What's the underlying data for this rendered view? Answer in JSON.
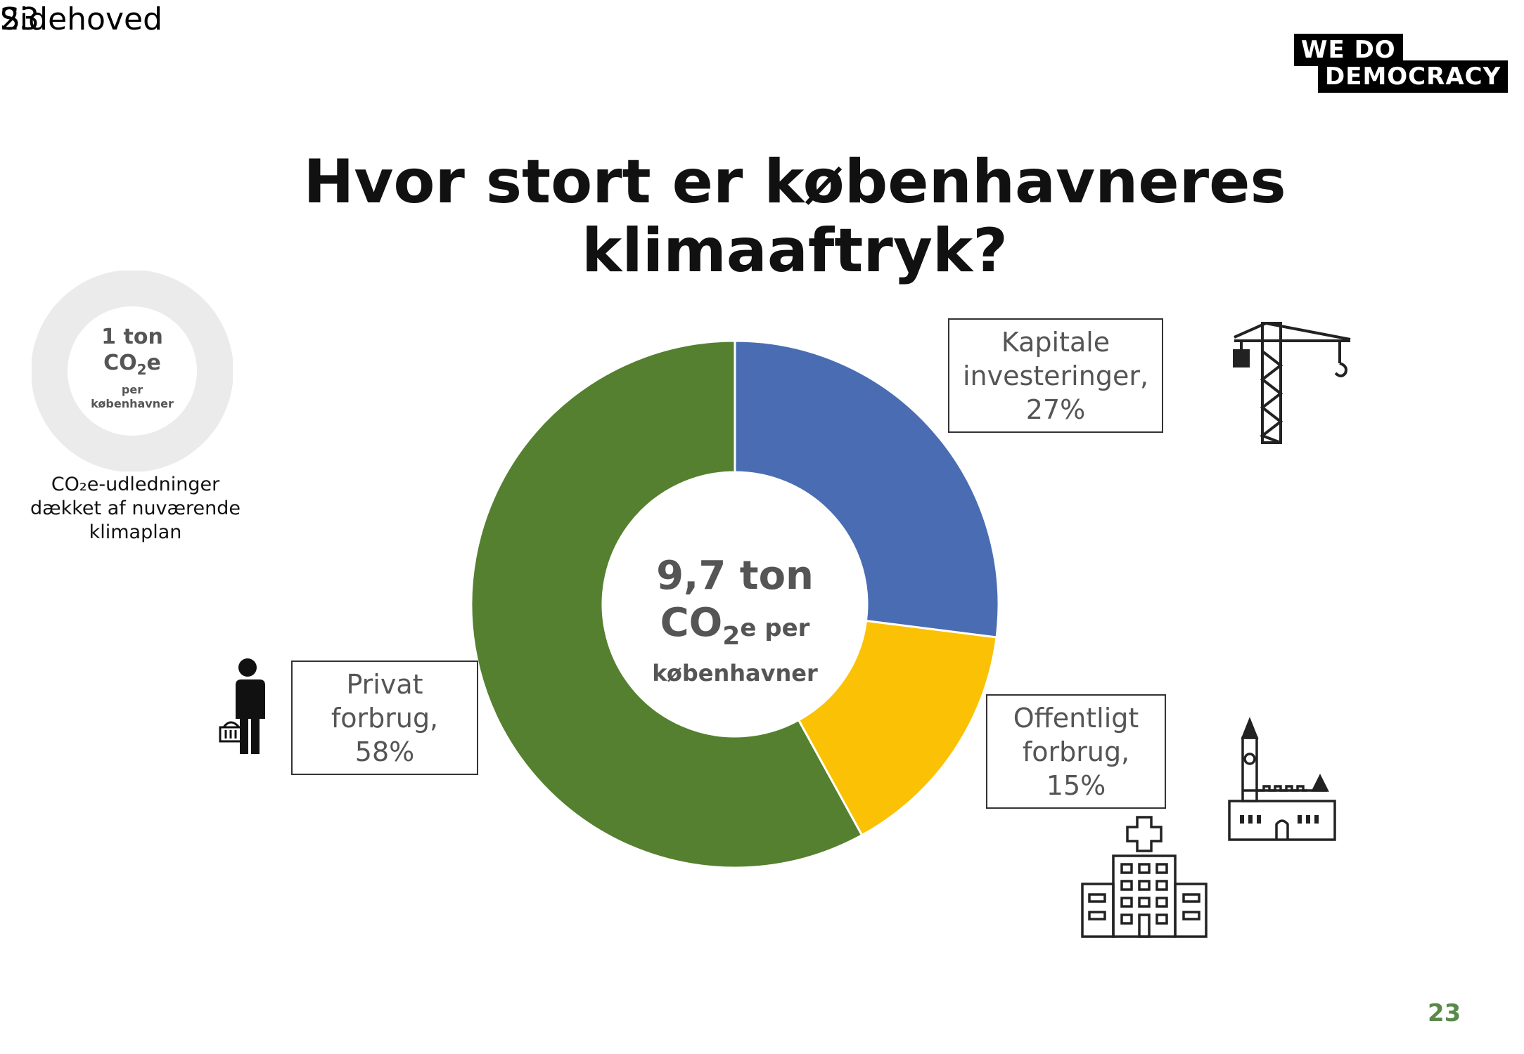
{
  "header": {
    "overlap_a": "Sidehoved",
    "overlap_b": "23"
  },
  "logo": {
    "line1": "WE  DO",
    "line2": "DEMOCRACY"
  },
  "title": {
    "line1": "Hvor stort er københavneres",
    "line2": "klimaaftryk?"
  },
  "small_ring": {
    "line1": "1 ton",
    "co2_main": "CO",
    "co2_sub": "2",
    "co2_suffix": "e",
    "line3": "per",
    "line4": "københavner",
    "color": "#ebebeb"
  },
  "legend": {
    "line1": "CO₂e-udledninger",
    "line2": "dækket af nuværende",
    "line3": "klimaplan"
  },
  "center": {
    "value": "9,7 ton",
    "co2_main": "CO",
    "co2_sub": "2",
    "co2_suffix": "e per",
    "line3": "københavner"
  },
  "labels": {
    "kapitale": {
      "line1": "Kapitale",
      "line2": "investeringer,",
      "line3": "27%"
    },
    "offentligt": {
      "line1": "Offentligt",
      "line2": "forbrug,",
      "line3": "15%"
    },
    "privat": {
      "line1": "Privat",
      "line2": "forbrug,",
      "line3": "58%"
    }
  },
  "icons": {
    "crane": "construction-crane-icon",
    "person": "shopper-with-basket-icon",
    "hospital": "hospital-icon",
    "church": "church-building-icon"
  },
  "page_number": "23",
  "page_number_color": "#5a8a4a",
  "chart_data": {
    "type": "pie",
    "categories": [
      "Kapitale investeringer",
      "Offentligt forbrug",
      "Privat forbrug"
    ],
    "values": [
      27,
      15,
      58
    ],
    "colors": [
      "#4a6cb3",
      "#fbc105",
      "#55802f"
    ]
  }
}
